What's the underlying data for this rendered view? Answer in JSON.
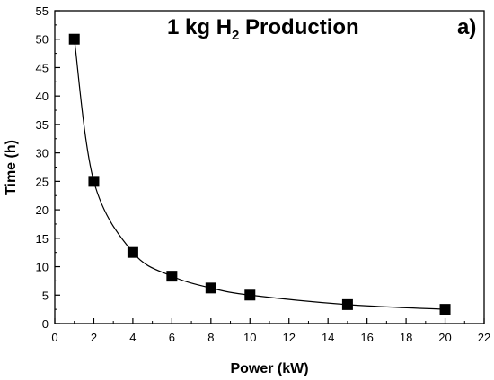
{
  "chart_data": {
    "type": "scatter",
    "title": {
      "prefix": "1 kg H",
      "subscript": "2",
      "suffix": " Production"
    },
    "panel_label": "a)",
    "xlabel": "Power (kW)",
    "ylabel": "Time (h)",
    "xlim": [
      0,
      22
    ],
    "ylim": [
      0,
      55
    ],
    "xticks": [
      0,
      2,
      4,
      6,
      8,
      10,
      12,
      14,
      16,
      18,
      20,
      22
    ],
    "yticks": [
      0,
      5,
      10,
      15,
      20,
      25,
      30,
      35,
      40,
      45,
      50,
      55
    ],
    "grid": false,
    "legend": "none",
    "marker": "square",
    "connect_points": true,
    "series": [
      {
        "x": [
          1,
          2,
          4,
          6,
          8,
          10,
          15,
          20
        ],
        "y": [
          50,
          25,
          12.5,
          8.33,
          6.25,
          5,
          3.33,
          2.5
        ]
      }
    ]
  }
}
